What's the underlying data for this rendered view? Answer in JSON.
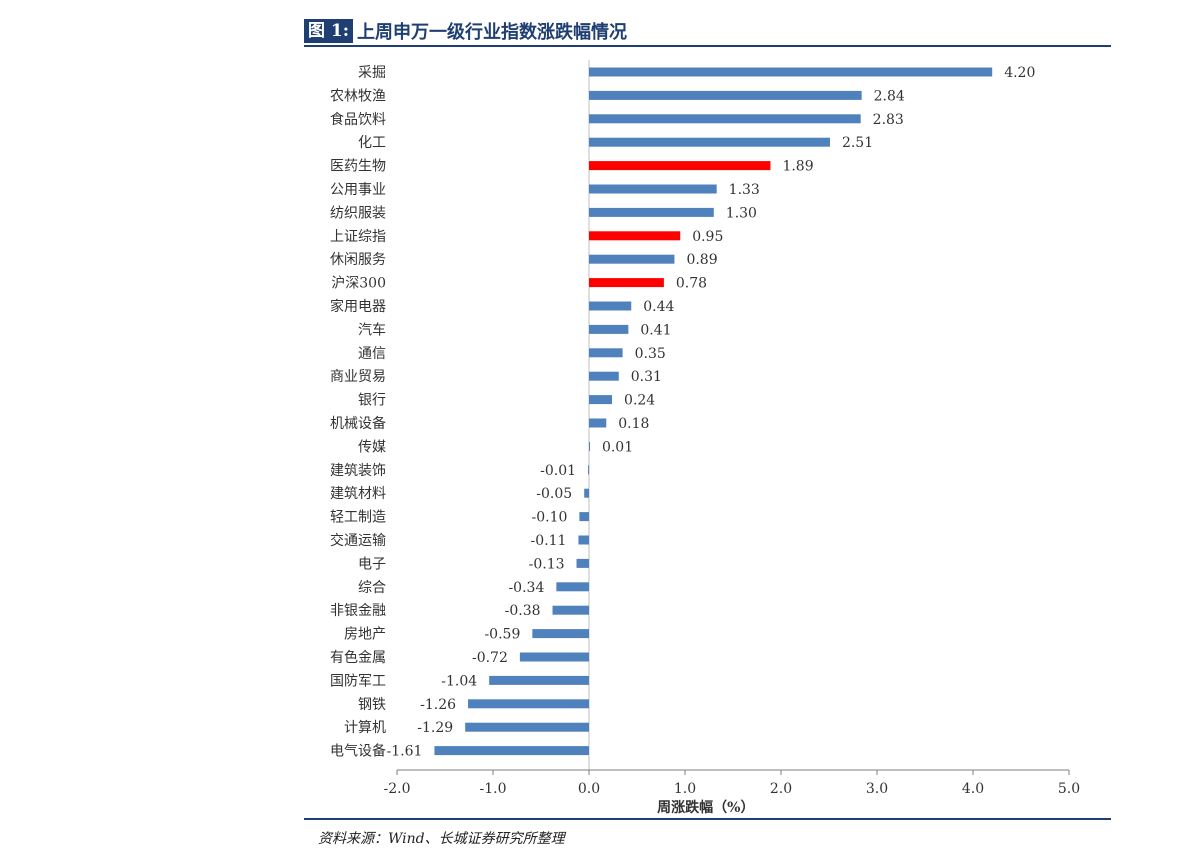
{
  "figure": {
    "label": "图 1:",
    "title": "上周申万一级行业指数涨跌幅情况"
  },
  "source": "资料来源：Wind、长城证券研究所整理",
  "chart_data": {
    "type": "bar",
    "orientation": "horizontal",
    "categories": [
      "采掘",
      "农林牧渔",
      "食品饮料",
      "化工",
      "医药生物",
      "公用事业",
      "纺织服装",
      "上证综指",
      "休闲服务",
      "沪深300",
      "家用电器",
      "汽车",
      "通信",
      "商业贸易",
      "银行",
      "机械设备",
      "传媒",
      "建筑装饰",
      "建筑材料",
      "轻工制造",
      "交通运输",
      "电子",
      "综合",
      "非银金融",
      "房地产",
      "有色金属",
      "国防军工",
      "钢铁",
      "计算机",
      "电气设备"
    ],
    "values": [
      4.2,
      2.84,
      2.83,
      2.51,
      1.89,
      1.33,
      1.3,
      0.95,
      0.89,
      0.78,
      0.44,
      0.41,
      0.35,
      0.31,
      0.24,
      0.18,
      0.01,
      -0.01,
      -0.05,
      -0.1,
      -0.11,
      -0.13,
      -0.34,
      -0.38,
      -0.59,
      -0.72,
      -1.04,
      -1.26,
      -1.29,
      -1.61
    ],
    "value_labels": [
      "4.20",
      "2.84",
      "2.83",
      "2.51",
      "1.89",
      "1.33",
      "1.30",
      "0.95",
      "0.89",
      "0.78",
      "0.44",
      "0.41",
      "0.35",
      "0.31",
      "0.24",
      "0.18",
      "0.01",
      "-0.01",
      "-0.05",
      "-0.10",
      "-0.11",
      "-0.13",
      "-0.34",
      "-0.38",
      "-0.59",
      "-0.72",
      "-1.04",
      "-1.26",
      "-1.29",
      "-1.61"
    ],
    "highlight": [
      "医药生物",
      "上证综指",
      "沪深300"
    ],
    "xlabel": "周涨跌幅（%）",
    "xlim": [
      -2.0,
      5.0
    ],
    "xticks": [
      "-2.0",
      "-1.0",
      "0.0",
      "1.0",
      "2.0",
      "3.0",
      "4.0",
      "5.0"
    ],
    "grid": false,
    "colors": {
      "default": "#4f81bd",
      "highlight": "#ff0000",
      "axis": "#bfbfbf"
    }
  }
}
